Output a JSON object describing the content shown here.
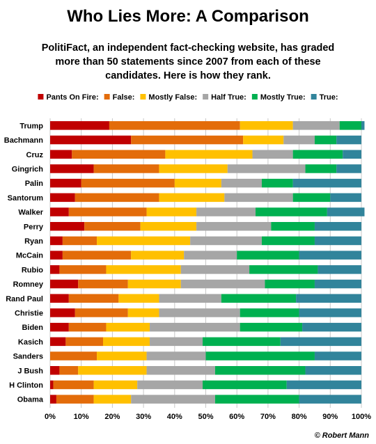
{
  "chart_data": {
    "type": "bar",
    "orientation": "horizontal",
    "stacked": true,
    "title": "Who Lies More: A Comparison",
    "subtitle_lines": [
      "PolitiFact,  an independent fact-checking website, has graded",
      "more than 50 statements since 2007 from each of these",
      "candidates. Here is how they rank."
    ],
    "credit": "© Robert Mann",
    "legend_position": "top",
    "grid": true,
    "xlim": [
      0,
      100
    ],
    "x_ticks": [
      "0%",
      "10%",
      "20%",
      "30%",
      "40%",
      "50%",
      "60%",
      "70%",
      "80%",
      "90%",
      "100%"
    ],
    "categories": [
      "Trump",
      "Bachmann",
      "Cruz",
      "Gingrich",
      "Palin",
      "Santorum",
      "Walker",
      "Perry",
      "Ryan",
      "McCain",
      "Rubio",
      "Romney",
      "Rand Paul",
      "Christie",
      "Biden",
      "Kasich",
      "Sanders",
      "J Bush",
      "H Clinton",
      "Obama"
    ],
    "series": [
      {
        "name": "Pants On Fire:",
        "color": "#c00000",
        "values": [
          19,
          26,
          7,
          14,
          10,
          8,
          6,
          11,
          4,
          4,
          3,
          9,
          6,
          8,
          6,
          5,
          0,
          3,
          1,
          2
        ]
      },
      {
        "name": "False:",
        "color": "#e36c0a",
        "values": [
          42,
          36,
          30,
          21,
          30,
          27,
          25,
          18,
          11,
          22,
          15,
          16,
          16,
          17,
          12,
          12,
          15,
          6,
          13,
          12
        ]
      },
      {
        "name": "Mostly False:",
        "color": "#ffc000",
        "values": [
          17,
          13,
          28,
          22,
          15,
          21,
          16,
          18,
          30,
          17,
          24,
          17,
          13,
          10,
          14,
          15,
          16,
          22,
          14,
          12
        ]
      },
      {
        "name": "Half True:",
        "color": "#a6a6a6",
        "values": [
          15,
          10,
          13,
          25,
          13,
          22,
          19,
          24,
          23,
          17,
          22,
          27,
          20,
          26,
          29,
          17,
          19,
          22,
          21,
          27
        ]
      },
      {
        "name": "Mostly True:",
        "color": "#00b050",
        "values": [
          7,
          7,
          16,
          10,
          10,
          12,
          23,
          14,
          17,
          20,
          22,
          16,
          24,
          19,
          20,
          25,
          35,
          29,
          27,
          27
        ]
      },
      {
        "name": "True:",
        "color": "#31849b",
        "values": [
          1,
          8,
          6,
          8,
          22,
          10,
          12,
          15,
          15,
          20,
          14,
          15,
          21,
          20,
          19,
          26,
          15,
          18,
          24,
          20
        ]
      }
    ]
  }
}
